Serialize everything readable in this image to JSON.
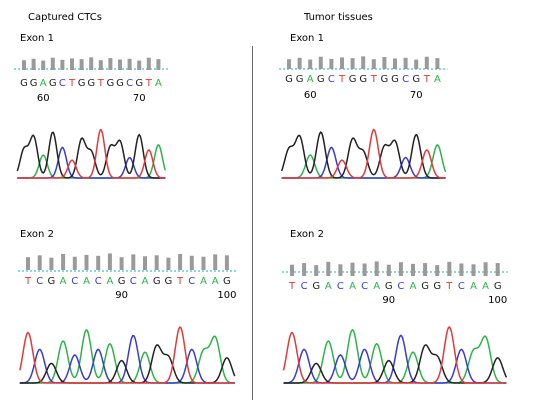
{
  "colors": {
    "A": "#2db34a",
    "C": "#3a3ad0",
    "G": "#222222",
    "T": "#e03a3a",
    "bar": "#9a9a9a",
    "baseline": "#66c8d8"
  },
  "columns": [
    {
      "heading": "Captured CTCs",
      "panels": [
        {
          "label": "Exon 1",
          "sequence": "GGAGCTGGTGGCGTA",
          "ticks": [
            {
              "pos": 3,
              "label": "60"
            },
            {
              "pos": 13,
              "label": "70"
            }
          ]
        },
        {
          "label": "Exon 2",
          "sequence": "TCGACACAGCAGGTCAAG",
          "ticks": [
            {
              "pos": 9,
              "label": "90"
            },
            {
              "pos": 18,
              "label": "100"
            }
          ]
        }
      ]
    },
    {
      "heading": "Tumor tissues",
      "panels": [
        {
          "label": "Exon 1",
          "sequence": "GGAGCTGGTGGCGTA",
          "ticks": [
            {
              "pos": 3,
              "label": "60"
            },
            {
              "pos": 13,
              "label": "70"
            }
          ]
        },
        {
          "label": "Exon 2",
          "sequence": "TCGACACAGCAGGTCAAG",
          "ticks": [
            {
              "pos": 9,
              "label": "90"
            },
            {
              "pos": 18,
              "label": "100"
            }
          ]
        }
      ]
    }
  ]
}
